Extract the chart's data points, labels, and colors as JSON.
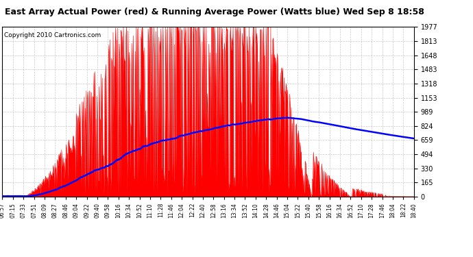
{
  "title": "East Array Actual Power (red) & Running Average Power (Watts blue) Wed Sep 8 18:58",
  "copyright": "Copyright 2010 Cartronics.com",
  "yticks": [
    0.0,
    164.8,
    329.6,
    494.3,
    659.1,
    823.9,
    988.7,
    1153.4,
    1318.2,
    1483.0,
    1647.8,
    1812.6,
    1977.3
  ],
  "ymax": 1977.3,
  "ymin": 0.0,
  "x_labels": [
    "06:57",
    "07:15",
    "07:33",
    "07:51",
    "08:09",
    "08:27",
    "08:46",
    "09:04",
    "09:22",
    "09:40",
    "09:58",
    "10:16",
    "10:34",
    "10:52",
    "11:10",
    "11:28",
    "11:46",
    "12:04",
    "12:22",
    "12:40",
    "12:58",
    "13:16",
    "13:34",
    "13:52",
    "14:10",
    "14:28",
    "14:46",
    "15:04",
    "15:22",
    "15:40",
    "15:58",
    "16:16",
    "16:34",
    "16:52",
    "17:10",
    "17:28",
    "17:46",
    "18:04",
    "18:22",
    "18:40"
  ],
  "bg_color": "#ffffff",
  "red_color": "#ff0000",
  "blue_color": "#0000ff",
  "grid_color": "#bbbbbb",
  "title_fontsize": 9,
  "copyright_fontsize": 6.5,
  "ytick_fontsize": 7,
  "xtick_fontsize": 5.5
}
